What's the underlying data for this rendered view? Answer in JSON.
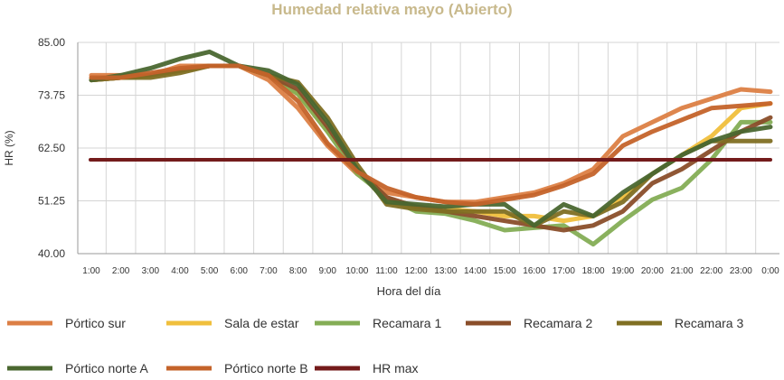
{
  "chart_data": {
    "type": "line",
    "title": "Humedad relativa mayo (Abierto)",
    "xlabel": "Hora del día",
    "ylabel": "HR (%)",
    "ylim": [
      40,
      85
    ],
    "yticks": [
      "40.00",
      "51.25",
      "62.50",
      "73.75",
      "85.00"
    ],
    "ytick_values": [
      40,
      51.25,
      62.5,
      73.75,
      85
    ],
    "categories": [
      "1:00",
      "2:00",
      "3:00",
      "4:00",
      "5:00",
      "6:00",
      "7:00",
      "8:00",
      "9:00",
      "10:00",
      "11:00",
      "12:00",
      "13:00",
      "14:00",
      "15:00",
      "16:00",
      "17:00",
      "18:00",
      "19:00",
      "20:00",
      "21:00",
      "22:00",
      "23:00",
      "0:00"
    ],
    "grid": true,
    "legend_position": "bottom",
    "series": [
      {
        "name": "Pórtico sur",
        "color": "#dc7f45",
        "values": [
          78,
          78,
          78,
          80,
          80,
          80,
          77,
          71,
          63,
          57,
          53,
          52,
          51,
          51,
          52,
          53,
          55,
          58,
          65,
          68,
          71,
          73,
          75,
          74.5
        ]
      },
      {
        "name": "Sala de estar",
        "color": "#f0bf3c",
        "values": [
          77,
          77.5,
          78,
          79,
          80,
          80,
          78,
          74,
          66,
          58,
          51,
          50,
          49.5,
          49,
          48,
          48,
          47,
          48,
          52,
          57,
          61,
          65,
          71,
          72
        ]
      },
      {
        "name": "Recamara 1",
        "color": "#84ad55",
        "values": [
          77,
          77.5,
          78,
          79,
          80,
          80,
          78,
          74,
          66,
          57,
          52,
          49,
          48.5,
          47,
          45,
          45.5,
          46,
          42,
          47,
          51.5,
          54,
          60,
          68,
          68
        ]
      },
      {
        "name": "Recamara 2",
        "color": "#8a4e2a",
        "values": [
          77,
          77.5,
          78,
          79,
          80,
          80,
          78,
          75,
          67,
          58,
          52,
          50,
          49,
          48,
          47,
          46,
          45,
          46,
          49,
          55,
          58,
          62,
          66,
          69
        ]
      },
      {
        "name": "Recamara 3",
        "color": "#806f23",
        "values": [
          77,
          77.5,
          77.5,
          78.5,
          80,
          80,
          78,
          76.5,
          69,
          59,
          50.5,
          49.5,
          49,
          49,
          49,
          46,
          49,
          48,
          51,
          57,
          61,
          64,
          64,
          64
        ]
      },
      {
        "name": "Pórtico norte A",
        "color": "#4a6730",
        "values": [
          77,
          78,
          79.5,
          81.5,
          83,
          80,
          79,
          76,
          68,
          58,
          51,
          50.5,
          50,
          50.5,
          50.5,
          46,
          50.5,
          48,
          53,
          57,
          61,
          64,
          66,
          67
        ]
      },
      {
        "name": "Pórtico norte B",
        "color": "#c4632a",
        "values": [
          77.5,
          77.5,
          78.5,
          79.5,
          80,
          80,
          78,
          72.5,
          63.5,
          57.5,
          54,
          52,
          51,
          50.5,
          51.5,
          52.5,
          54.5,
          57,
          63,
          66,
          68.5,
          71,
          71.5,
          72
        ]
      },
      {
        "name": "HR max",
        "color": "#741b1b",
        "values": [
          60,
          60,
          60,
          60,
          60,
          60,
          60,
          60,
          60,
          60,
          60,
          60,
          60,
          60,
          60,
          60,
          60,
          60,
          60,
          60,
          60,
          60,
          60,
          60
        ]
      }
    ]
  }
}
